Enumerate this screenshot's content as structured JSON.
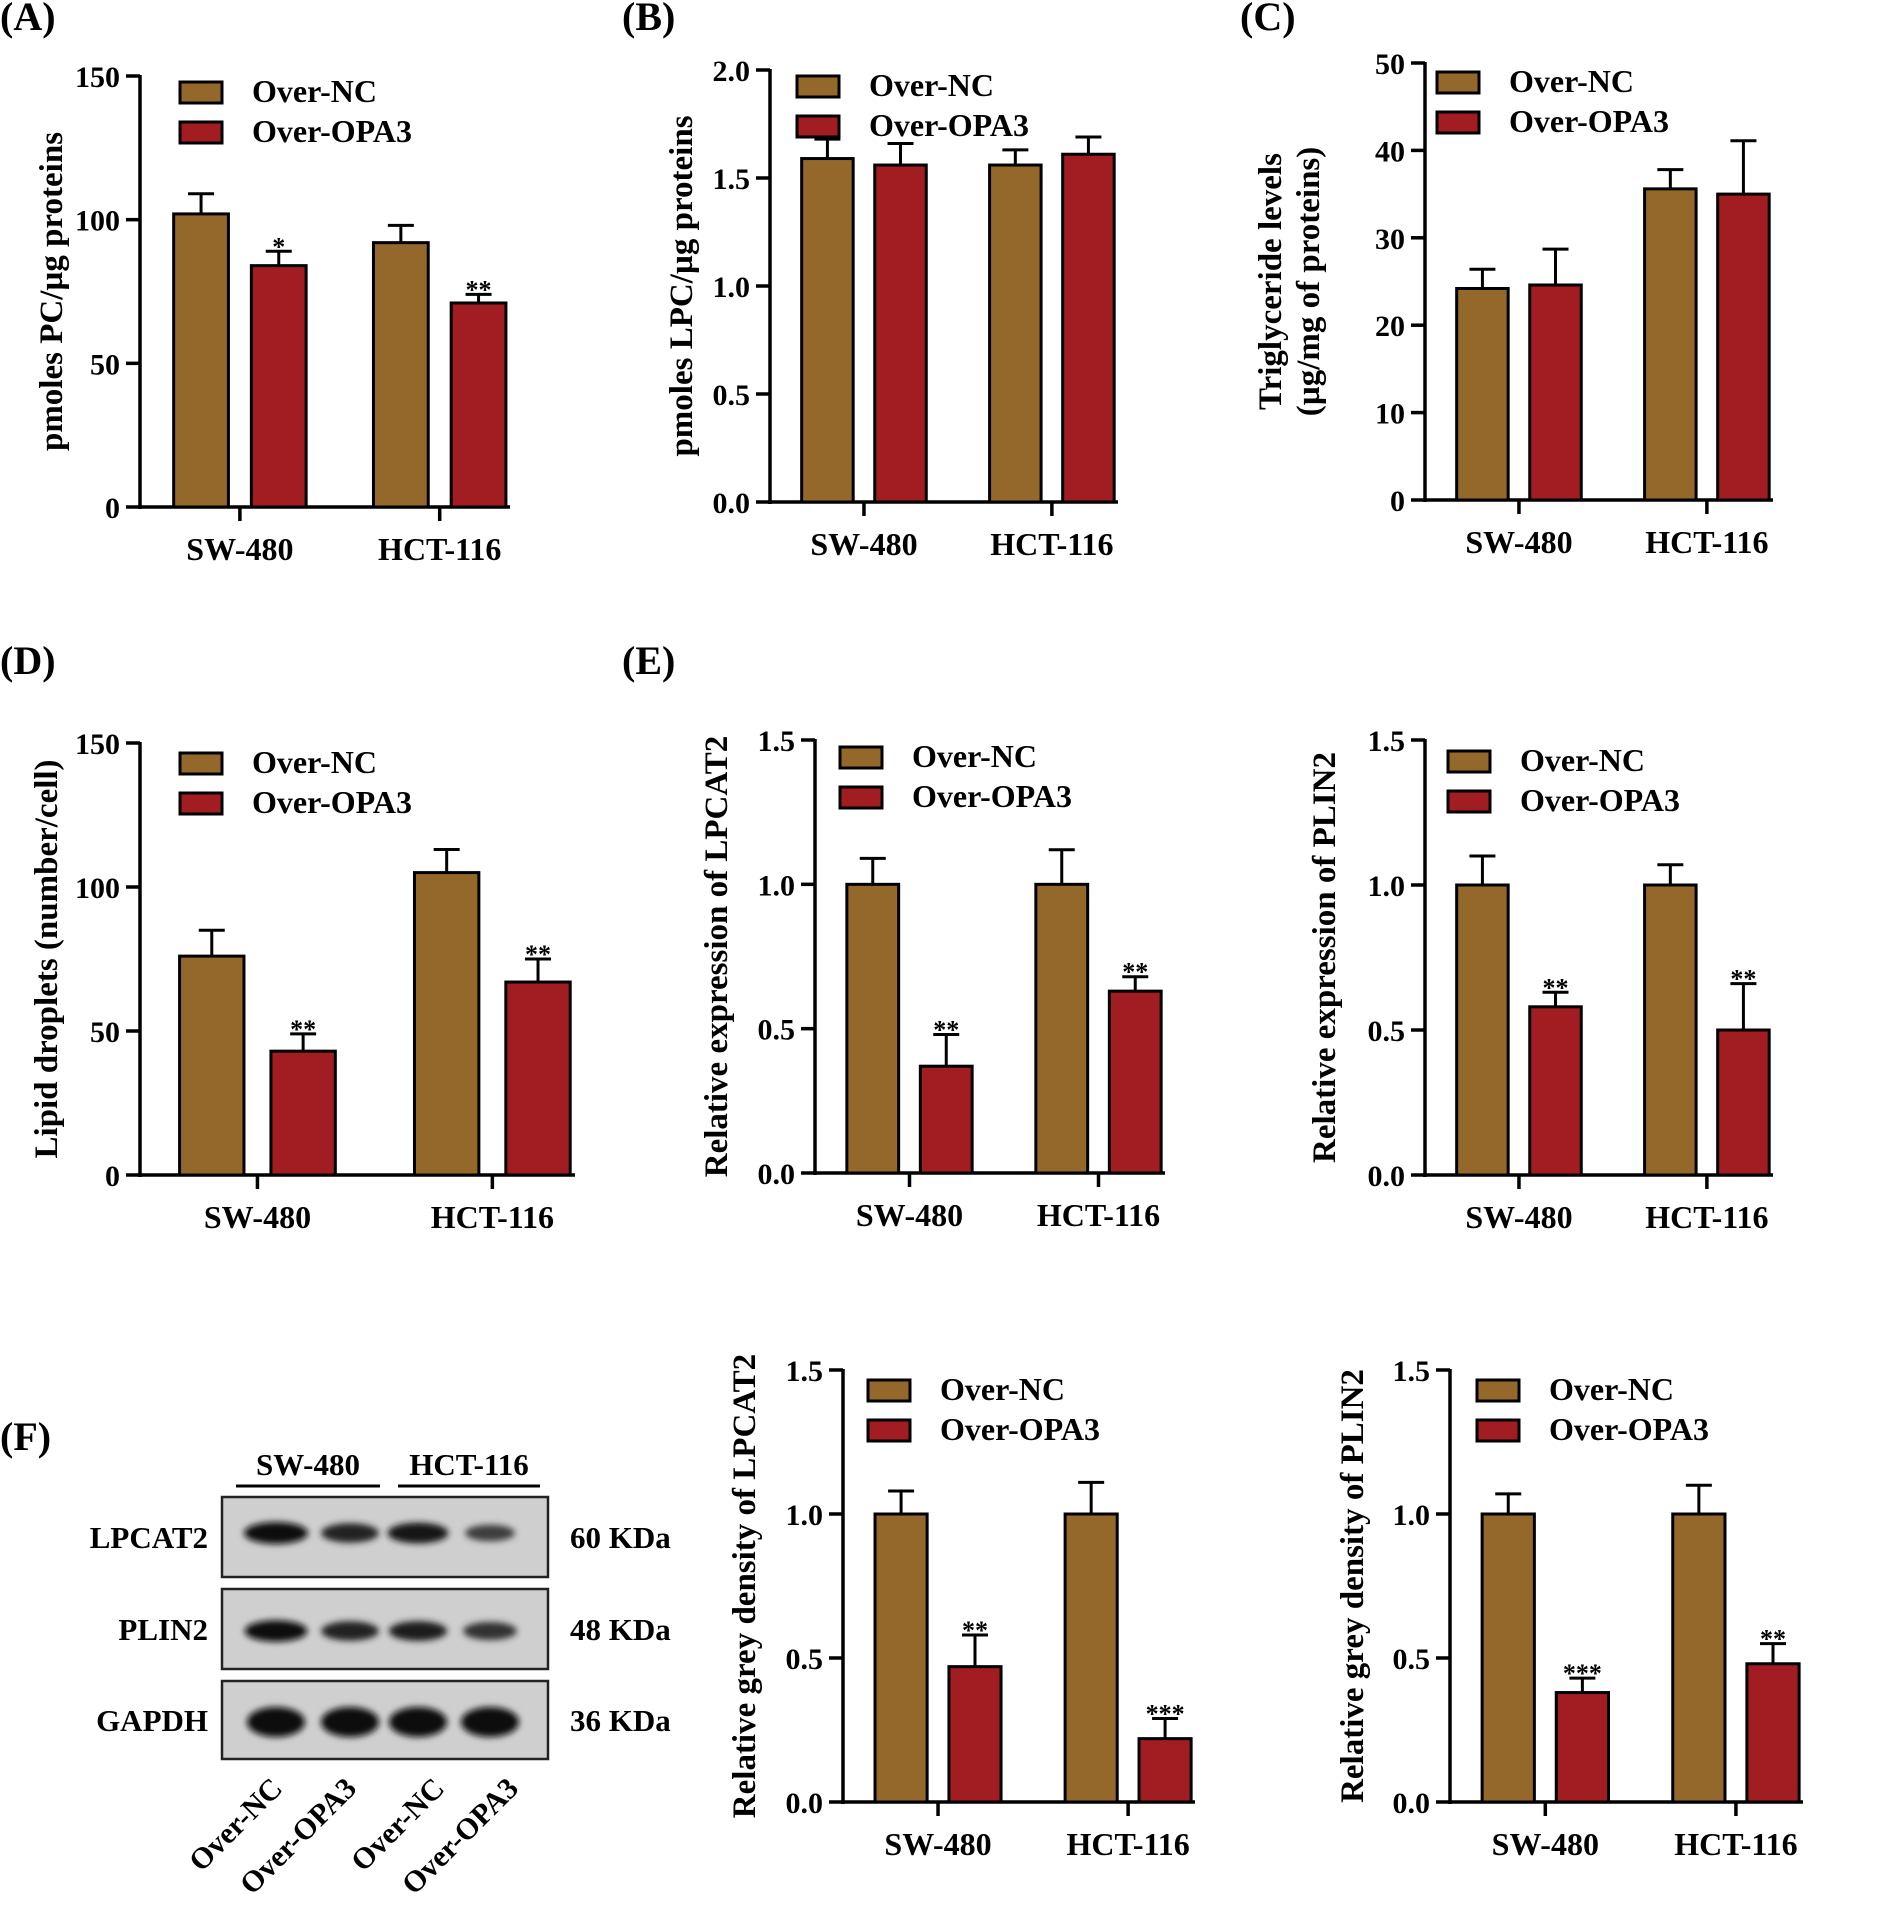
{
  "colors": {
    "nc": "#94682A",
    "opa3": "#A11D21",
    "axis": "#000000"
  },
  "legend": [
    "Over-NC",
    "Over-OPA3"
  ],
  "chart_data": [
    {
      "id": "A",
      "type": "bar",
      "panel_label": "(A)",
      "categories": [
        "SW-480",
        "HCT-116"
      ],
      "ylabel": [
        "pmoles PC/µg proteins"
      ],
      "ylim": [
        0,
        150
      ],
      "yticks": [
        0,
        50,
        100,
        150
      ],
      "series": [
        {
          "name": "Over-NC",
          "values": [
            102,
            92
          ],
          "errors": [
            7,
            6
          ],
          "sig": [
            "",
            ""
          ]
        },
        {
          "name": "Over-OPA3",
          "values": [
            84,
            71
          ],
          "errors": [
            5,
            3
          ],
          "sig": [
            "*",
            "**"
          ]
        }
      ]
    },
    {
      "id": "B",
      "type": "bar",
      "panel_label": "(B)",
      "categories": [
        "SW-480",
        "HCT-116"
      ],
      "ylabel": [
        "pmoles LPC/µg proteins"
      ],
      "ylim": [
        0,
        2.0
      ],
      "yticks": [
        0.0,
        0.5,
        1.0,
        1.5,
        2.0
      ],
      "tick_decimals": 1,
      "series": [
        {
          "name": "Over-NC",
          "values": [
            1.59,
            1.56
          ],
          "errors": [
            0.09,
            0.07
          ],
          "sig": [
            "",
            ""
          ]
        },
        {
          "name": "Over-OPA3",
          "values": [
            1.56,
            1.61
          ],
          "errors": [
            0.1,
            0.08
          ],
          "sig": [
            "",
            ""
          ]
        }
      ]
    },
    {
      "id": "C",
      "type": "bar",
      "panel_label": "(C)",
      "categories": [
        "SW-480",
        "HCT-116"
      ],
      "ylabel": [
        "Triglyceride levels",
        "(µg/mg of proteins)"
      ],
      "ylim": [
        0,
        50
      ],
      "yticks": [
        0,
        10,
        20,
        30,
        40,
        50
      ],
      "series": [
        {
          "name": "Over-NC",
          "values": [
            24.2,
            35.6
          ],
          "errors": [
            2.2,
            2.2
          ],
          "sig": [
            "",
            ""
          ]
        },
        {
          "name": "Over-OPA3",
          "values": [
            24.6,
            35.0
          ],
          "errors": [
            4.1,
            6.1
          ],
          "sig": [
            "",
            ""
          ]
        }
      ]
    },
    {
      "id": "D",
      "type": "bar",
      "panel_label": "(D)",
      "categories": [
        "SW-480",
        "HCT-116"
      ],
      "ylabel": [
        "Lipid droplets (number/cell)"
      ],
      "ylim": [
        0,
        150
      ],
      "yticks": [
        0,
        50,
        100,
        150
      ],
      "series": [
        {
          "name": "Over-NC",
          "values": [
            76,
            105
          ],
          "errors": [
            9,
            8
          ],
          "sig": [
            "",
            ""
          ]
        },
        {
          "name": "Over-OPA3",
          "values": [
            43,
            67
          ],
          "errors": [
            6,
            8
          ],
          "sig": [
            "**",
            "**"
          ]
        }
      ]
    },
    {
      "id": "E1",
      "type": "bar",
      "panel_label": "(E)",
      "categories": [
        "SW-480",
        "HCT-116"
      ],
      "ylabel": [
        "Relative expression of LPCAT2"
      ],
      "ylim": [
        0,
        1.5
      ],
      "yticks": [
        0.0,
        0.5,
        1.0,
        1.5
      ],
      "tick_decimals": 1,
      "series": [
        {
          "name": "Over-NC",
          "values": [
            1.0,
            1.0
          ],
          "errors": [
            0.09,
            0.12
          ],
          "sig": [
            "",
            ""
          ]
        },
        {
          "name": "Over-OPA3",
          "values": [
            0.37,
            0.63
          ],
          "errors": [
            0.11,
            0.05
          ],
          "sig": [
            "**",
            "**"
          ]
        }
      ]
    },
    {
      "id": "E2",
      "type": "bar",
      "panel_label": "",
      "categories": [
        "SW-480",
        "HCT-116"
      ],
      "ylabel": [
        "Relative expression of PLIN2"
      ],
      "ylim": [
        0,
        1.5
      ],
      "yticks": [
        0.0,
        0.5,
        1.0,
        1.5
      ],
      "tick_decimals": 1,
      "series": [
        {
          "name": "Over-NC",
          "values": [
            1.0,
            1.0
          ],
          "errors": [
            0.1,
            0.07
          ],
          "sig": [
            "",
            ""
          ]
        },
        {
          "name": "Over-OPA3",
          "values": [
            0.58,
            0.5
          ],
          "errors": [
            0.05,
            0.16
          ],
          "sig": [
            "**",
            "**"
          ]
        }
      ]
    },
    {
      "id": "F1",
      "type": "bar",
      "panel_label": "",
      "categories": [
        "SW-480",
        "HCT-116"
      ],
      "ylabel": [
        "Relative grey density of LPCAT2"
      ],
      "ylim": [
        0,
        1.5
      ],
      "yticks": [
        0.0,
        0.5,
        1.0,
        1.5
      ],
      "tick_decimals": 1,
      "series": [
        {
          "name": "Over-NC",
          "values": [
            1.0,
            1.0
          ],
          "errors": [
            0.08,
            0.11
          ],
          "sig": [
            "",
            ""
          ]
        },
        {
          "name": "Over-OPA3",
          "values": [
            0.47,
            0.22
          ],
          "errors": [
            0.11,
            0.07
          ],
          "sig": [
            "**",
            "***"
          ]
        }
      ]
    },
    {
      "id": "F2",
      "type": "bar",
      "panel_label": "",
      "categories": [
        "SW-480",
        "HCT-116"
      ],
      "ylabel": [
        "Relative grey density of PLIN2"
      ],
      "ylim": [
        0,
        1.5
      ],
      "yticks": [
        0.0,
        0.5,
        1.0,
        1.5
      ],
      "tick_decimals": 1,
      "series": [
        {
          "name": "Over-NC",
          "values": [
            1.0,
            1.0
          ],
          "errors": [
            0.07,
            0.1
          ],
          "sig": [
            "",
            ""
          ]
        },
        {
          "name": "Over-OPA3",
          "values": [
            0.38,
            0.48
          ],
          "errors": [
            0.05,
            0.07
          ],
          "sig": [
            "***",
            "**"
          ]
        }
      ]
    }
  ],
  "blot": {
    "panel_label": "(F)",
    "groups": [
      "SW-480",
      "HCT-116"
    ],
    "lane_labels": [
      "Over-NC",
      "Over-OPA3",
      "Over-NC",
      "Over-OPA3"
    ],
    "rows": [
      {
        "protein": "LPCAT2",
        "size": "60 KDa",
        "intensity": [
          1.0,
          0.75,
          0.88,
          0.45
        ]
      },
      {
        "protein": "PLIN2",
        "size": "48 KDa",
        "intensity": [
          0.95,
          0.75,
          0.78,
          0.6
        ]
      },
      {
        "protein": "GAPDH",
        "size": "36 KDa",
        "intensity": [
          1.0,
          1.0,
          1.0,
          1.0
        ]
      }
    ]
  }
}
